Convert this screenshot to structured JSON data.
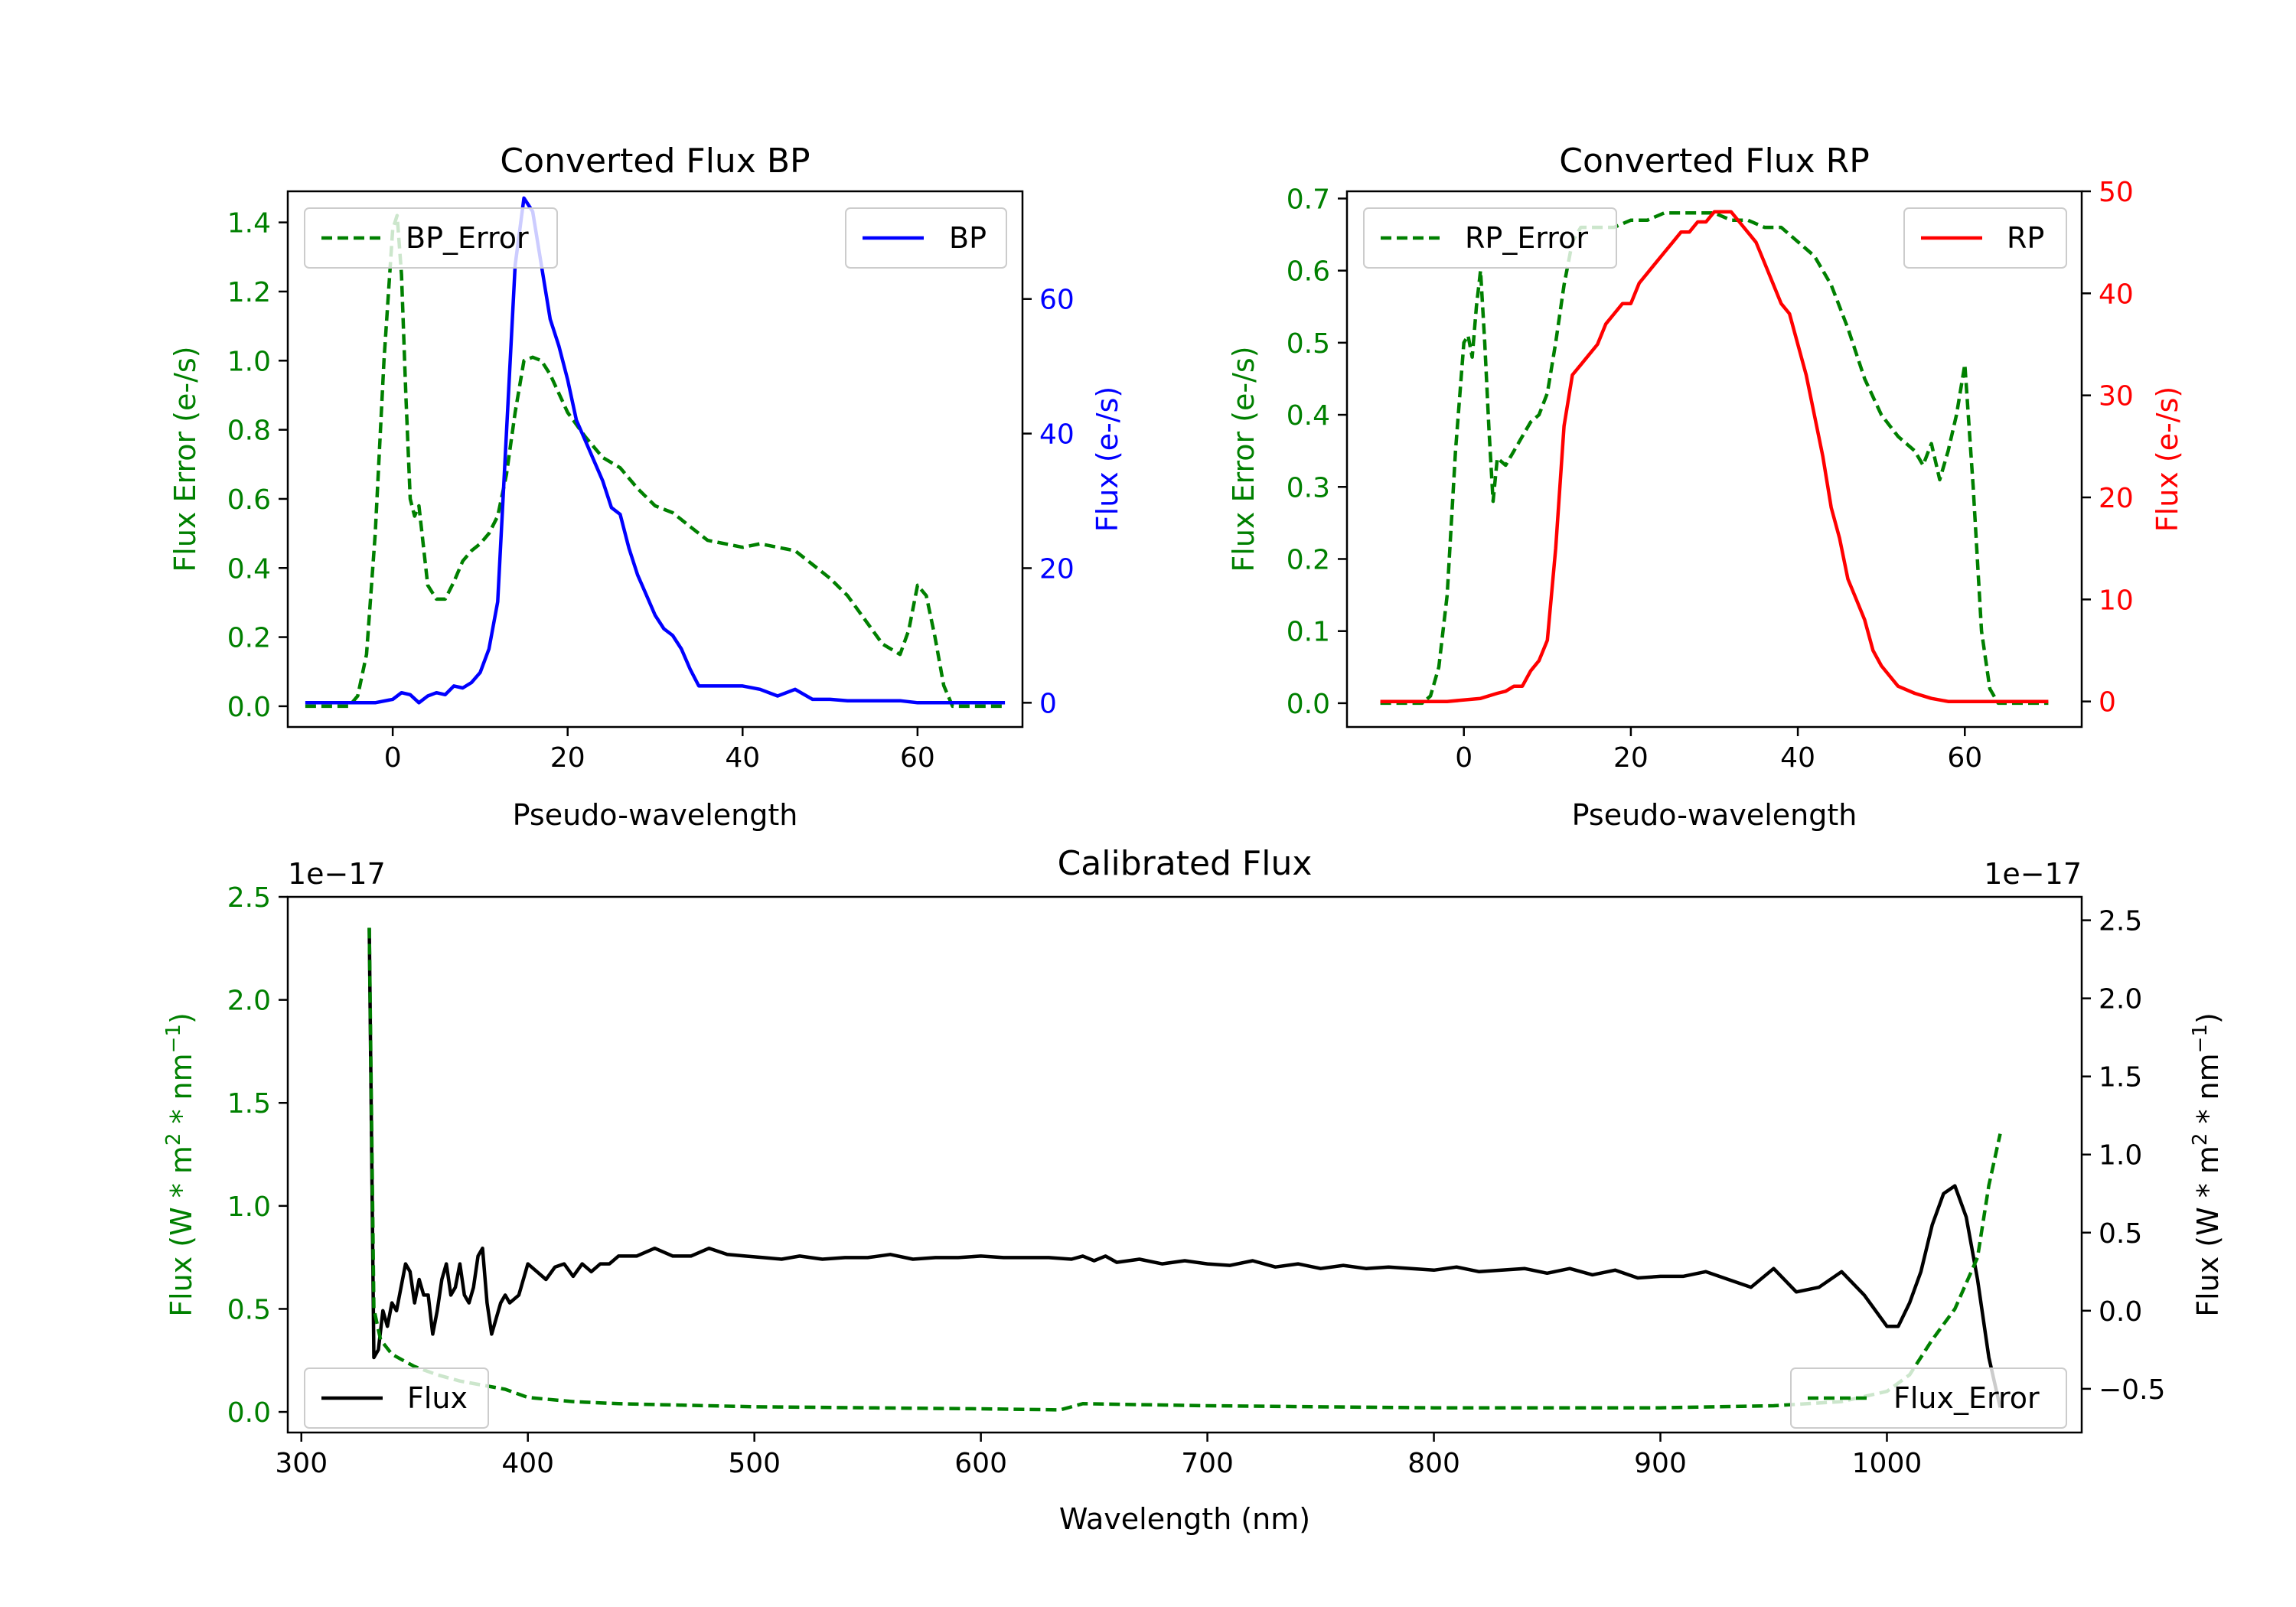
{
  "chart_data": [
    {
      "id": "bp",
      "type": "line",
      "title": "Converted Flux BP",
      "xlabel": "Pseudo-wavelength",
      "ylabel_left": "Flux Error (e-/s)",
      "ylabel_right": "Flux (e-/s)",
      "xlim": [
        -12,
        72
      ],
      "ylim_left": [
        -0.06,
        1.49
      ],
      "ylim_right": [
        -3.6,
        76
      ],
      "xticks": [
        0,
        20,
        40,
        60
      ],
      "yticks_left": [
        0.0,
        0.2,
        0.4,
        0.6,
        0.8,
        1.0,
        1.2,
        1.4
      ],
      "yticks_right": [
        0,
        20,
        40,
        60
      ],
      "ytick_labels_left": [
        "0.0",
        "0.2",
        "0.4",
        "0.6",
        "0.8",
        "1.0",
        "1.2",
        "1.4"
      ],
      "ytick_labels_right": [
        "0",
        "20",
        "40",
        "60"
      ],
      "colors": {
        "left_axis": "#008000",
        "right_axis": "#0000ff"
      },
      "series": [
        {
          "name": "BP_Error",
          "axis": "left",
          "style": "dashed",
          "color": "#008000",
          "legend": "top-left",
          "x": [
            -10,
            -5,
            -4,
            -3,
            -2,
            -1,
            0,
            0.5,
            1,
            1.5,
            2,
            2.5,
            3,
            4,
            5,
            6,
            7,
            8,
            9,
            10,
            11,
            12,
            13,
            14,
            15,
            16,
            17,
            18,
            20,
            22,
            24,
            26,
            28,
            30,
            32,
            34,
            36,
            38,
            40,
            42,
            44,
            46,
            48,
            50,
            52,
            54,
            56,
            58,
            59,
            60,
            61,
            62,
            63,
            64,
            66,
            70
          ],
          "y": [
            0,
            0,
            0.03,
            0.15,
            0.5,
            1.0,
            1.38,
            1.42,
            1.25,
            0.9,
            0.6,
            0.55,
            0.58,
            0.35,
            0.31,
            0.31,
            0.36,
            0.42,
            0.45,
            0.47,
            0.5,
            0.55,
            0.67,
            0.85,
            1.0,
            1.01,
            1.0,
            0.96,
            0.85,
            0.78,
            0.72,
            0.69,
            0.63,
            0.58,
            0.56,
            0.52,
            0.48,
            0.47,
            0.46,
            0.47,
            0.46,
            0.45,
            0.41,
            0.37,
            0.32,
            0.25,
            0.18,
            0.15,
            0.22,
            0.35,
            0.32,
            0.2,
            0.06,
            0.0,
            0.0,
            0.0
          ]
        },
        {
          "name": "BP",
          "axis": "right",
          "style": "solid",
          "color": "#0000ff",
          "legend": "top-right",
          "x": [
            -10,
            -2,
            0,
            1,
            2,
            3,
            4,
            5,
            6,
            7,
            8,
            9,
            10,
            11,
            12,
            13,
            14,
            15,
            16,
            17,
            18,
            19,
            20,
            21,
            22,
            23,
            24,
            25,
            26,
            27,
            28,
            29,
            30,
            31,
            32,
            33,
            34,
            35,
            36,
            37,
            38,
            39,
            40,
            42,
            44,
            46,
            48,
            50,
            52,
            54,
            56,
            58,
            60,
            62,
            66,
            70
          ],
          "y": [
            0,
            0,
            0.5,
            1.5,
            1.2,
            0,
            1,
            1.5,
            1.2,
            2.5,
            2.2,
            3,
            4.5,
            8,
            15,
            40,
            65,
            75,
            73,
            65,
            57,
            53,
            48,
            42,
            39,
            36,
            33,
            29,
            28,
            23,
            19,
            16,
            13,
            11,
            10,
            8,
            5,
            2.5,
            2.5,
            2.5,
            2.5,
            2.5,
            2.5,
            2,
            1,
            2,
            0.5,
            0.5,
            0.3,
            0.3,
            0.3,
            0.3,
            0,
            0,
            0,
            0
          ]
        }
      ]
    },
    {
      "id": "rp",
      "type": "line",
      "title": "Converted Flux RP",
      "xlabel": "Pseudo-wavelength",
      "ylabel_left": "Flux Error (e-/s)",
      "ylabel_right": "Flux (e-/s)",
      "xlim": [
        -14,
        74
      ],
      "ylim_left": [
        -0.033,
        0.71
      ],
      "ylim_right": [
        -2.5,
        50
      ],
      "xticks": [
        0,
        20,
        40,
        60
      ],
      "yticks_left": [
        0.0,
        0.1,
        0.2,
        0.3,
        0.4,
        0.5,
        0.6,
        0.7
      ],
      "yticks_right": [
        0,
        10,
        20,
        30,
        40,
        50
      ],
      "ytick_labels_left": [
        "0.0",
        "0.1",
        "0.2",
        "0.3",
        "0.4",
        "0.5",
        "0.6",
        "0.7"
      ],
      "ytick_labels_right": [
        "0",
        "10",
        "20",
        "30",
        "40",
        "50"
      ],
      "colors": {
        "left_axis": "#008000",
        "right_axis": "#ff0000"
      },
      "series": [
        {
          "name": "RP_Error",
          "axis": "left",
          "style": "dashed",
          "color": "#008000",
          "legend": "top-left",
          "x": [
            -10,
            -5,
            -4,
            -3,
            -2,
            -1,
            0,
            0.5,
            1,
            1.5,
            2,
            2.5,
            3,
            3.5,
            4,
            5,
            6,
            7,
            8,
            9,
            10,
            11,
            12,
            13,
            14,
            15,
            16,
            18,
            20,
            22,
            24,
            26,
            28,
            30,
            32,
            34,
            36,
            38,
            40,
            42,
            44,
            45,
            46,
            48,
            50,
            52,
            54,
            55,
            56,
            57,
            58,
            59,
            60,
            61,
            62,
            63,
            64,
            70
          ],
          "y": [
            0,
            0,
            0.01,
            0.05,
            0.15,
            0.35,
            0.5,
            0.51,
            0.48,
            0.55,
            0.6,
            0.5,
            0.38,
            0.28,
            0.34,
            0.33,
            0.35,
            0.37,
            0.39,
            0.4,
            0.43,
            0.5,
            0.58,
            0.64,
            0.66,
            0.66,
            0.66,
            0.66,
            0.67,
            0.67,
            0.68,
            0.68,
            0.68,
            0.68,
            0.67,
            0.67,
            0.66,
            0.66,
            0.64,
            0.62,
            0.58,
            0.55,
            0.52,
            0.45,
            0.4,
            0.37,
            0.35,
            0.33,
            0.36,
            0.31,
            0.35,
            0.4,
            0.47,
            0.3,
            0.1,
            0.02,
            0.0,
            0.0
          ]
        },
        {
          "name": "RP",
          "axis": "right",
          "style": "solid",
          "color": "#ff0000",
          "legend": "top-right",
          "x": [
            -10,
            -2,
            2,
            4,
            5,
            6,
            7,
            8,
            9,
            10,
            11,
            12,
            13,
            14,
            15,
            16,
            17,
            18,
            19,
            20,
            21,
            22,
            23,
            24,
            25,
            26,
            27,
            28,
            29,
            30,
            31,
            32,
            33,
            34,
            35,
            36,
            37,
            38,
            39,
            40,
            41,
            42,
            43,
            44,
            45,
            46,
            47,
            48,
            49,
            50,
            52,
            54,
            56,
            58,
            60,
            70
          ],
          "y": [
            0,
            0,
            0.3,
            0.8,
            1,
            1.5,
            1.5,
            3,
            4,
            6,
            15,
            27,
            32,
            33,
            34,
            35,
            37,
            38,
            39,
            39,
            41,
            42,
            43,
            44,
            45,
            46,
            46,
            47,
            47,
            48,
            48,
            48,
            47,
            46,
            45,
            43,
            41,
            39,
            38,
            35,
            32,
            28,
            24,
            19,
            16,
            12,
            10,
            8,
            5,
            3.5,
            1.5,
            0.8,
            0.3,
            0,
            0,
            0
          ]
        }
      ]
    },
    {
      "id": "calibrated",
      "type": "line",
      "title": "Calibrated Flux",
      "xlabel": "Wavelength (nm)",
      "ylabel_left": "Flux (W * m$^2$ * nm$^{-1}$)",
      "ylabel_right": "Flux (W * m$^2$ * nm$^{-1}$)",
      "ylabel_parts": {
        "a": "Flux (W * m",
        "b": "2",
        "c": " * nm",
        "d": "−1",
        "e": ")"
      },
      "offset_left": "1e−17",
      "offset_right": "1e−17",
      "xlim": [
        294,
        1086
      ],
      "ylim_left": [
        -0.1,
        2.5
      ],
      "ylim_right": [
        -0.78,
        2.65
      ],
      "xticks": [
        300,
        400,
        500,
        600,
        700,
        800,
        900,
        1000
      ],
      "yticks_left": [
        0.0,
        0.5,
        1.0,
        1.5,
        2.0,
        2.5
      ],
      "yticks_right": [
        -0.5,
        0.0,
        0.5,
        1.0,
        1.5,
        2.0,
        2.5
      ],
      "ytick_labels_left": [
        "0.0",
        "0.5",
        "1.0",
        "1.5",
        "2.0",
        "2.5"
      ],
      "ytick_labels_right": [
        "−0.5",
        "0.0",
        "0.5",
        "1.0",
        "1.5",
        "2.0",
        "2.5"
      ],
      "colors": {
        "left_axis": "#008000",
        "right_axis": "#000000"
      },
      "series": [
        {
          "name": "Flux",
          "axis": "right",
          "style": "solid",
          "color": "#000000",
          "legend": "bottom-left",
          "x": [
            330,
            332,
            334,
            336,
            338,
            340,
            342,
            344,
            346,
            348,
            350,
            352,
            354,
            356,
            358,
            360,
            362,
            364,
            366,
            368,
            370,
            372,
            374,
            376,
            378,
            380,
            382,
            384,
            386,
            388,
            390,
            392,
            396,
            400,
            404,
            408,
            412,
            416,
            420,
            424,
            428,
            432,
            436,
            440,
            448,
            456,
            464,
            472,
            480,
            488,
            496,
            504,
            512,
            520,
            530,
            540,
            550,
            560,
            570,
            580,
            590,
            600,
            610,
            620,
            630,
            640,
            645,
            650,
            655,
            660,
            670,
            680,
            690,
            700,
            710,
            720,
            730,
            740,
            750,
            760,
            770,
            780,
            790,
            800,
            810,
            820,
            830,
            840,
            850,
            860,
            870,
            880,
            890,
            900,
            910,
            920,
            930,
            940,
            950,
            960,
            970,
            980,
            990,
            1000,
            1005,
            1010,
            1015,
            1020,
            1025,
            1030,
            1035,
            1040,
            1045,
            1050
          ],
          "y": [
            2.45,
            -0.3,
            -0.25,
            0.0,
            -0.1,
            0.05,
            0.0,
            0.15,
            0.3,
            0.25,
            0.05,
            0.2,
            0.1,
            0.1,
            -0.15,
            0.0,
            0.2,
            0.3,
            0.1,
            0.15,
            0.3,
            0.1,
            0.05,
            0.15,
            0.35,
            0.4,
            0.05,
            -0.15,
            -0.05,
            0.05,
            0.1,
            0.05,
            0.1,
            0.3,
            0.25,
            0.2,
            0.28,
            0.3,
            0.22,
            0.3,
            0.25,
            0.3,
            0.3,
            0.35,
            0.35,
            0.4,
            0.35,
            0.35,
            0.4,
            0.36,
            0.35,
            0.34,
            0.33,
            0.35,
            0.33,
            0.34,
            0.34,
            0.36,
            0.33,
            0.34,
            0.34,
            0.35,
            0.34,
            0.34,
            0.34,
            0.33,
            0.35,
            0.32,
            0.35,
            0.31,
            0.33,
            0.3,
            0.32,
            0.3,
            0.29,
            0.32,
            0.28,
            0.3,
            0.27,
            0.29,
            0.27,
            0.28,
            0.27,
            0.26,
            0.28,
            0.25,
            0.26,
            0.27,
            0.24,
            0.27,
            0.23,
            0.26,
            0.21,
            0.22,
            0.22,
            0.25,
            0.2,
            0.15,
            0.27,
            0.12,
            0.15,
            0.25,
            0.1,
            -0.1,
            -0.1,
            0.05,
            0.25,
            0.55,
            0.75,
            0.8,
            0.6,
            0.2,
            -0.3,
            -0.62
          ]
        },
        {
          "name": "Flux_Error",
          "axis": "left",
          "style": "dashed",
          "color": "#008000",
          "legend": "bottom-right",
          "x": [
            330,
            332,
            335,
            340,
            345,
            350,
            360,
            370,
            380,
            390,
            400,
            420,
            440,
            460,
            480,
            500,
            550,
            600,
            635,
            645,
            700,
            800,
            900,
            950,
            980,
            1000,
            1010,
            1020,
            1030,
            1040,
            1045,
            1050
          ],
          "y": [
            2.35,
            0.5,
            0.35,
            0.28,
            0.25,
            0.22,
            0.18,
            0.15,
            0.13,
            0.11,
            0.07,
            0.05,
            0.04,
            0.035,
            0.03,
            0.025,
            0.02,
            0.015,
            0.01,
            0.04,
            0.03,
            0.02,
            0.02,
            0.03,
            0.05,
            0.1,
            0.18,
            0.35,
            0.5,
            0.75,
            1.1,
            1.35
          ]
        }
      ]
    }
  ]
}
